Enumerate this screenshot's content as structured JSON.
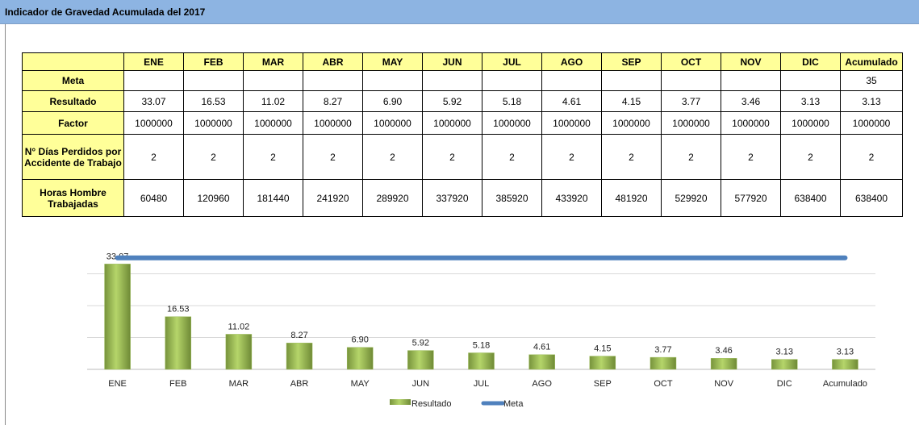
{
  "header": {
    "title": "Indicador de Gravedad Acumulada del 2017"
  },
  "table": {
    "columns": [
      "ENE",
      "FEB",
      "MAR",
      "ABR",
      "MAY",
      "JUN",
      "JUL",
      "AGO",
      "SEP",
      "OCT",
      "NOV",
      "DIC",
      "Acumulado"
    ],
    "rows": [
      {
        "label": "Meta",
        "cells": [
          null,
          null,
          null,
          null,
          null,
          null,
          null,
          null,
          null,
          null,
          null,
          null,
          "35"
        ]
      },
      {
        "label": "Resultado",
        "cells": [
          "33.07",
          "16.53",
          "11.02",
          "8.27",
          "6.90",
          "5.92",
          "5.18",
          "4.61",
          "4.15",
          "3.77",
          "3.46",
          "3.13",
          "3.13"
        ]
      },
      {
        "label": "Factor",
        "cells": [
          "1000000",
          "1000000",
          "1000000",
          "1000000",
          "1000000",
          "1000000",
          "1000000",
          "1000000",
          "1000000",
          "1000000",
          "1000000",
          "1000000",
          "1000000"
        ]
      },
      {
        "label": "N° Días Perdidos por Accidente de Trabajo",
        "cells": [
          "2",
          "2",
          "2",
          "2",
          "2",
          "2",
          "2",
          "2",
          "2",
          "2",
          "2",
          "2",
          "2"
        ]
      },
      {
        "label": "Horas Hombre Trabajadas",
        "cells": [
          "60480",
          "120960",
          "181440",
          "241920",
          "289920",
          "337920",
          "385920",
          "433920",
          "481920",
          "529920",
          "577920",
          "638400",
          "638400"
        ]
      }
    ]
  },
  "chart_data": {
    "type": "bar",
    "categories": [
      "ENE",
      "FEB",
      "MAR",
      "ABR",
      "MAY",
      "JUN",
      "JUL",
      "AGO",
      "SEP",
      "OCT",
      "NOV",
      "DIC",
      "Acumulado"
    ],
    "series": [
      {
        "name": "Resultado",
        "type": "bar",
        "color": "#9bbb59",
        "values": [
          33.07,
          16.53,
          11.02,
          8.27,
          6.9,
          5.92,
          5.18,
          4.61,
          4.15,
          3.77,
          3.46,
          3.13,
          3.13
        ],
        "value_labels": [
          "33.07",
          "16.53",
          "11.02",
          "8.27",
          "6.90",
          "5.92",
          "5.18",
          "4.61",
          "4.15",
          "3.77",
          "3.46",
          "3.13",
          "3.13"
        ]
      },
      {
        "name": "Meta",
        "type": "line",
        "color": "#4f81bd",
        "values": [
          35,
          35,
          35,
          35,
          35,
          35,
          35,
          35,
          35,
          35,
          35,
          35,
          35
        ]
      }
    ],
    "ylim": [
      0,
      40
    ],
    "yticks": [
      0,
      10,
      20,
      30
    ],
    "grid": true,
    "legend": "bottom"
  }
}
